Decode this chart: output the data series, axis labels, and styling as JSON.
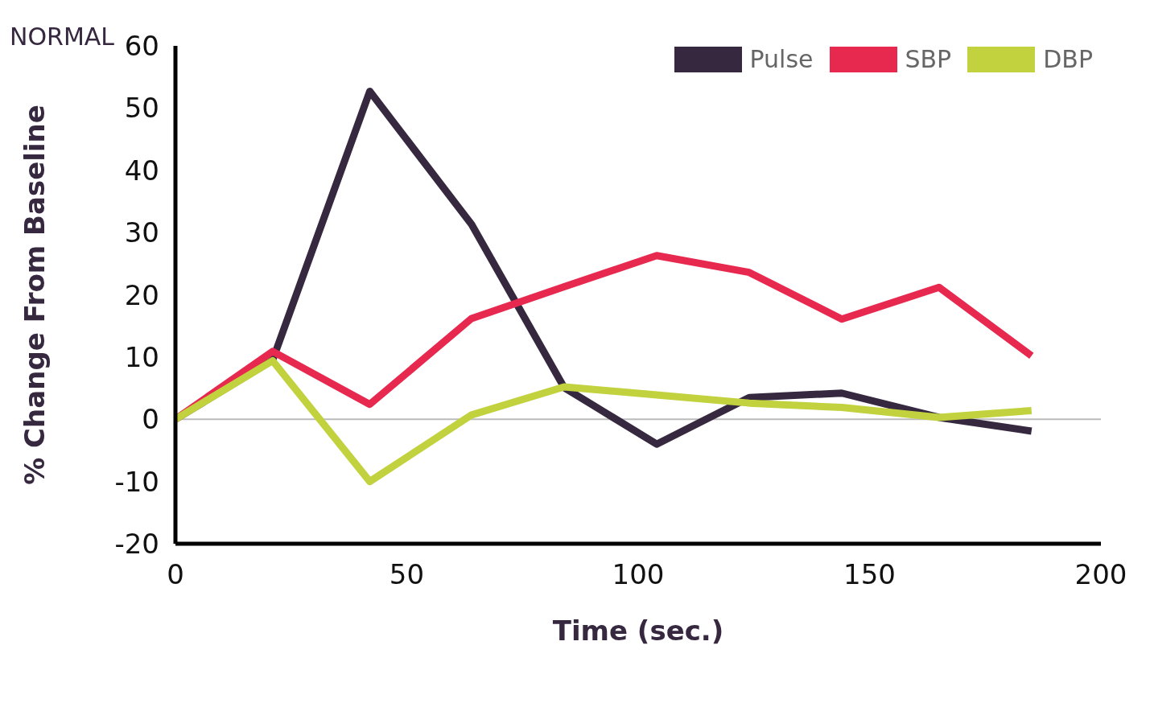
{
  "chart_data": {
    "type": "line",
    "title": "NORMAL",
    "xlabel": "Time (sec.)",
    "ylabel": "% Change From Baseline",
    "x": [
      0,
      21,
      42,
      64,
      84,
      104,
      124,
      144,
      165,
      185
    ],
    "series": [
      {
        "name": "Pulse",
        "color": "#35283f",
        "values": [
          0,
          9.5,
          52.7,
          31.3,
          5.1,
          -4,
          3.5,
          4.2,
          0.3,
          -1.9
        ]
      },
      {
        "name": "SBP",
        "color": "#e8294f",
        "values": [
          0,
          10.9,
          2.4,
          16.2,
          21.3,
          26.3,
          23.6,
          16.1,
          21.2,
          10.2
        ]
      },
      {
        "name": "DBP",
        "color": "#c2d23e",
        "values": [
          0,
          9.4,
          -10,
          0.7,
          5.2,
          3.9,
          2.6,
          1.9,
          0.3,
          1.4
        ]
      }
    ],
    "xlim": [
      0,
      200
    ],
    "xticks": [
      0,
      50,
      100,
      150,
      200
    ],
    "ylim": [
      -20,
      60
    ],
    "yticks": [
      -20,
      -10,
      0,
      10,
      20,
      30,
      40,
      50,
      60
    ],
    "ref_lines": [
      {
        "axis": "y",
        "value": 0,
        "color": "#bbbbbb"
      }
    ],
    "grid": false,
    "legend": "top right",
    "marker": "none",
    "line_style": "solid"
  }
}
